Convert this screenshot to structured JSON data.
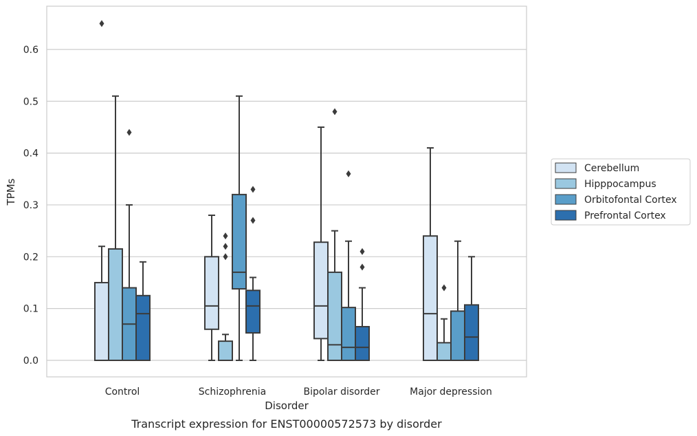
{
  "chart_data": {
    "type": "box",
    "title": "",
    "caption": "Transcript expression for ENST00000572573 by disorder",
    "xlabel": "Disorder",
    "ylabel": "TPMs",
    "ylim": [
      -0.032,
      0.685
    ],
    "yticks": [
      0.0,
      0.1,
      0.2,
      0.3,
      0.4,
      0.5,
      0.6
    ],
    "ytick_labels": [
      "0.0",
      "0.1",
      "0.2",
      "0.3",
      "0.4",
      "0.5",
      "0.6"
    ],
    "grid": "horizontal",
    "legend_position": "right",
    "categories": [
      "Control",
      "Schizophrenia",
      "Bipolar disorder",
      "Major depression"
    ],
    "series": [
      {
        "name": "Cerebellum",
        "color": "#d2e3f3",
        "boxes": [
          {
            "q1": 0.0,
            "median": 0.0,
            "q3": 0.15,
            "whisker_low": 0.0,
            "whisker_high": 0.22,
            "outliers": [
              0.65
            ]
          },
          {
            "q1": 0.06,
            "median": 0.105,
            "q3": 0.2,
            "whisker_low": 0.0,
            "whisker_high": 0.28,
            "outliers": []
          },
          {
            "q1": 0.042,
            "median": 0.105,
            "q3": 0.228,
            "whisker_low": 0.0,
            "whisker_high": 0.45,
            "outliers": []
          },
          {
            "q1": 0.0,
            "median": 0.09,
            "q3": 0.24,
            "whisker_low": 0.0,
            "whisker_high": 0.41,
            "outliers": []
          }
        ]
      },
      {
        "name": "Hipppocampus",
        "color": "#9ac8e0",
        "boxes": [
          {
            "q1": 0.0,
            "median": 0.0,
            "q3": 0.215,
            "whisker_low": 0.0,
            "whisker_high": 0.51,
            "outliers": []
          },
          {
            "q1": 0.0,
            "median": 0.0,
            "q3": 0.037,
            "whisker_low": 0.0,
            "whisker_high": 0.05,
            "outliers": [
              0.2,
              0.22,
              0.24
            ]
          },
          {
            "q1": 0.0,
            "median": 0.03,
            "q3": 0.17,
            "whisker_low": 0.0,
            "whisker_high": 0.25,
            "outliers": [
              0.48
            ]
          },
          {
            "q1": 0.0,
            "median": 0.0,
            "q3": 0.034,
            "whisker_low": 0.0,
            "whisker_high": 0.08,
            "outliers": [
              0.14
            ]
          }
        ]
      },
      {
        "name": "Orbitofontal Cortex",
        "color": "#5a9ec9",
        "boxes": [
          {
            "q1": 0.0,
            "median": 0.07,
            "q3": 0.14,
            "whisker_low": 0.0,
            "whisker_high": 0.3,
            "outliers": [
              0.44
            ]
          },
          {
            "q1": 0.138,
            "median": 0.17,
            "q3": 0.32,
            "whisker_low": 0.0,
            "whisker_high": 0.51,
            "outliers": []
          },
          {
            "q1": 0.0,
            "median": 0.025,
            "q3": 0.102,
            "whisker_low": 0.0,
            "whisker_high": 0.23,
            "outliers": [
              0.36
            ]
          },
          {
            "q1": 0.0,
            "median": 0.0,
            "q3": 0.095,
            "whisker_low": 0.0,
            "whisker_high": 0.23,
            "outliers": []
          }
        ]
      },
      {
        "name": "Prefrontal Cortex",
        "color": "#2c6fae",
        "boxes": [
          {
            "q1": 0.0,
            "median": 0.09,
            "q3": 0.125,
            "whisker_low": 0.0,
            "whisker_high": 0.19,
            "outliers": []
          },
          {
            "q1": 0.053,
            "median": 0.105,
            "q3": 0.135,
            "whisker_low": 0.0,
            "whisker_high": 0.16,
            "outliers": [
              0.27,
              0.33
            ]
          },
          {
            "q1": 0.0,
            "median": 0.025,
            "q3": 0.065,
            "whisker_low": 0.0,
            "whisker_high": 0.14,
            "outliers": [
              0.18,
              0.21
            ]
          },
          {
            "q1": 0.0,
            "median": 0.045,
            "q3": 0.107,
            "whisker_low": 0.0,
            "whisker_high": 0.2,
            "outliers": []
          }
        ]
      }
    ]
  }
}
